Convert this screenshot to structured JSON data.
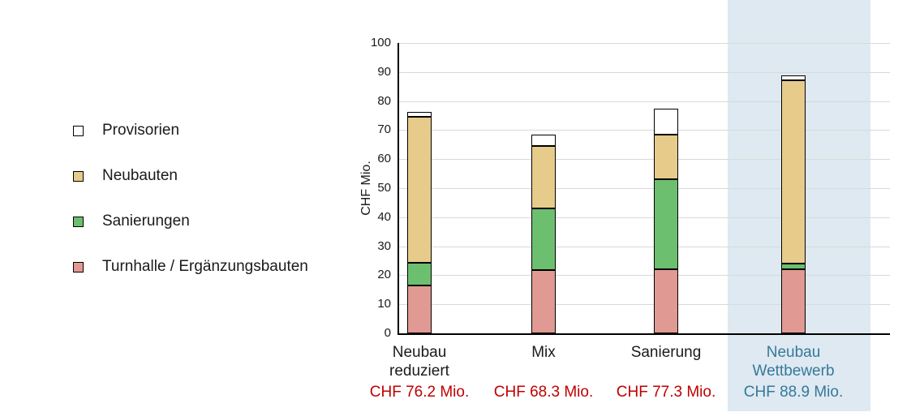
{
  "colors": {
    "background": "#FFFFFF",
    "highlight_band": "#DEE9F1",
    "gridline": "#D9D9D9",
    "axis": "#000000",
    "category_label": "#1A1A1A",
    "total_label_red": "#C00000",
    "highlight_text": "#36789B",
    "provisorien": "#FFFFFF",
    "neubauten": "#E7CB8B",
    "sanierungen": "#6CBF6E",
    "turnhalle": "#E09A93"
  },
  "legend": {
    "items": [
      {
        "label": "Provisorien",
        "color_key": "provisorien"
      },
      {
        "label": "Neubauten",
        "color_key": "neubauten"
      },
      {
        "label": "Sanierungen",
        "color_key": "sanierungen"
      },
      {
        "label": "Turnhalle / Ergänzungsbauten",
        "color_key": "turnhalle"
      }
    ]
  },
  "chart_data": {
    "type": "bar",
    "stacked": true,
    "title": "",
    "ylabel": "CHF Mio.",
    "xlabel": "",
    "ylim": [
      0,
      100
    ],
    "yticks": [
      0,
      10,
      20,
      30,
      40,
      50,
      60,
      70,
      80,
      90,
      100
    ],
    "grid": true,
    "legend_position": "left",
    "categories": [
      {
        "lines": [
          "Neubau",
          "reduziert"
        ],
        "total": 76.2,
        "total_label": "CHF 76.2 Mio.",
        "highlighted": false
      },
      {
        "lines": [
          "Mix"
        ],
        "total": 68.3,
        "total_label": "CHF 68.3 Mio.",
        "highlighted": false
      },
      {
        "lines": [
          "Sanierung"
        ],
        "total": 77.3,
        "total_label": "CHF 77.3 Mio.",
        "highlighted": false
      },
      {
        "lines": [
          "Neubau",
          "Wettbewerb"
        ],
        "total": 88.9,
        "total_label": "CHF 88.9 Mio.",
        "highlighted": true
      }
    ],
    "series": [
      {
        "name": "Turnhalle / Ergänzungsbauten",
        "color_key": "turnhalle",
        "values": [
          16.4,
          21.8,
          22.0,
          22.1
        ]
      },
      {
        "name": "Sanierungen",
        "color_key": "sanierungen",
        "values": [
          7.8,
          21.2,
          31.0,
          1.9
        ]
      },
      {
        "name": "Neubauten",
        "color_key": "neubauten",
        "values": [
          50.4,
          21.5,
          15.5,
          63.1
        ]
      },
      {
        "name": "Provisorien",
        "color_key": "provisorien",
        "values": [
          1.6,
          3.8,
          8.8,
          1.8
        ]
      }
    ]
  }
}
